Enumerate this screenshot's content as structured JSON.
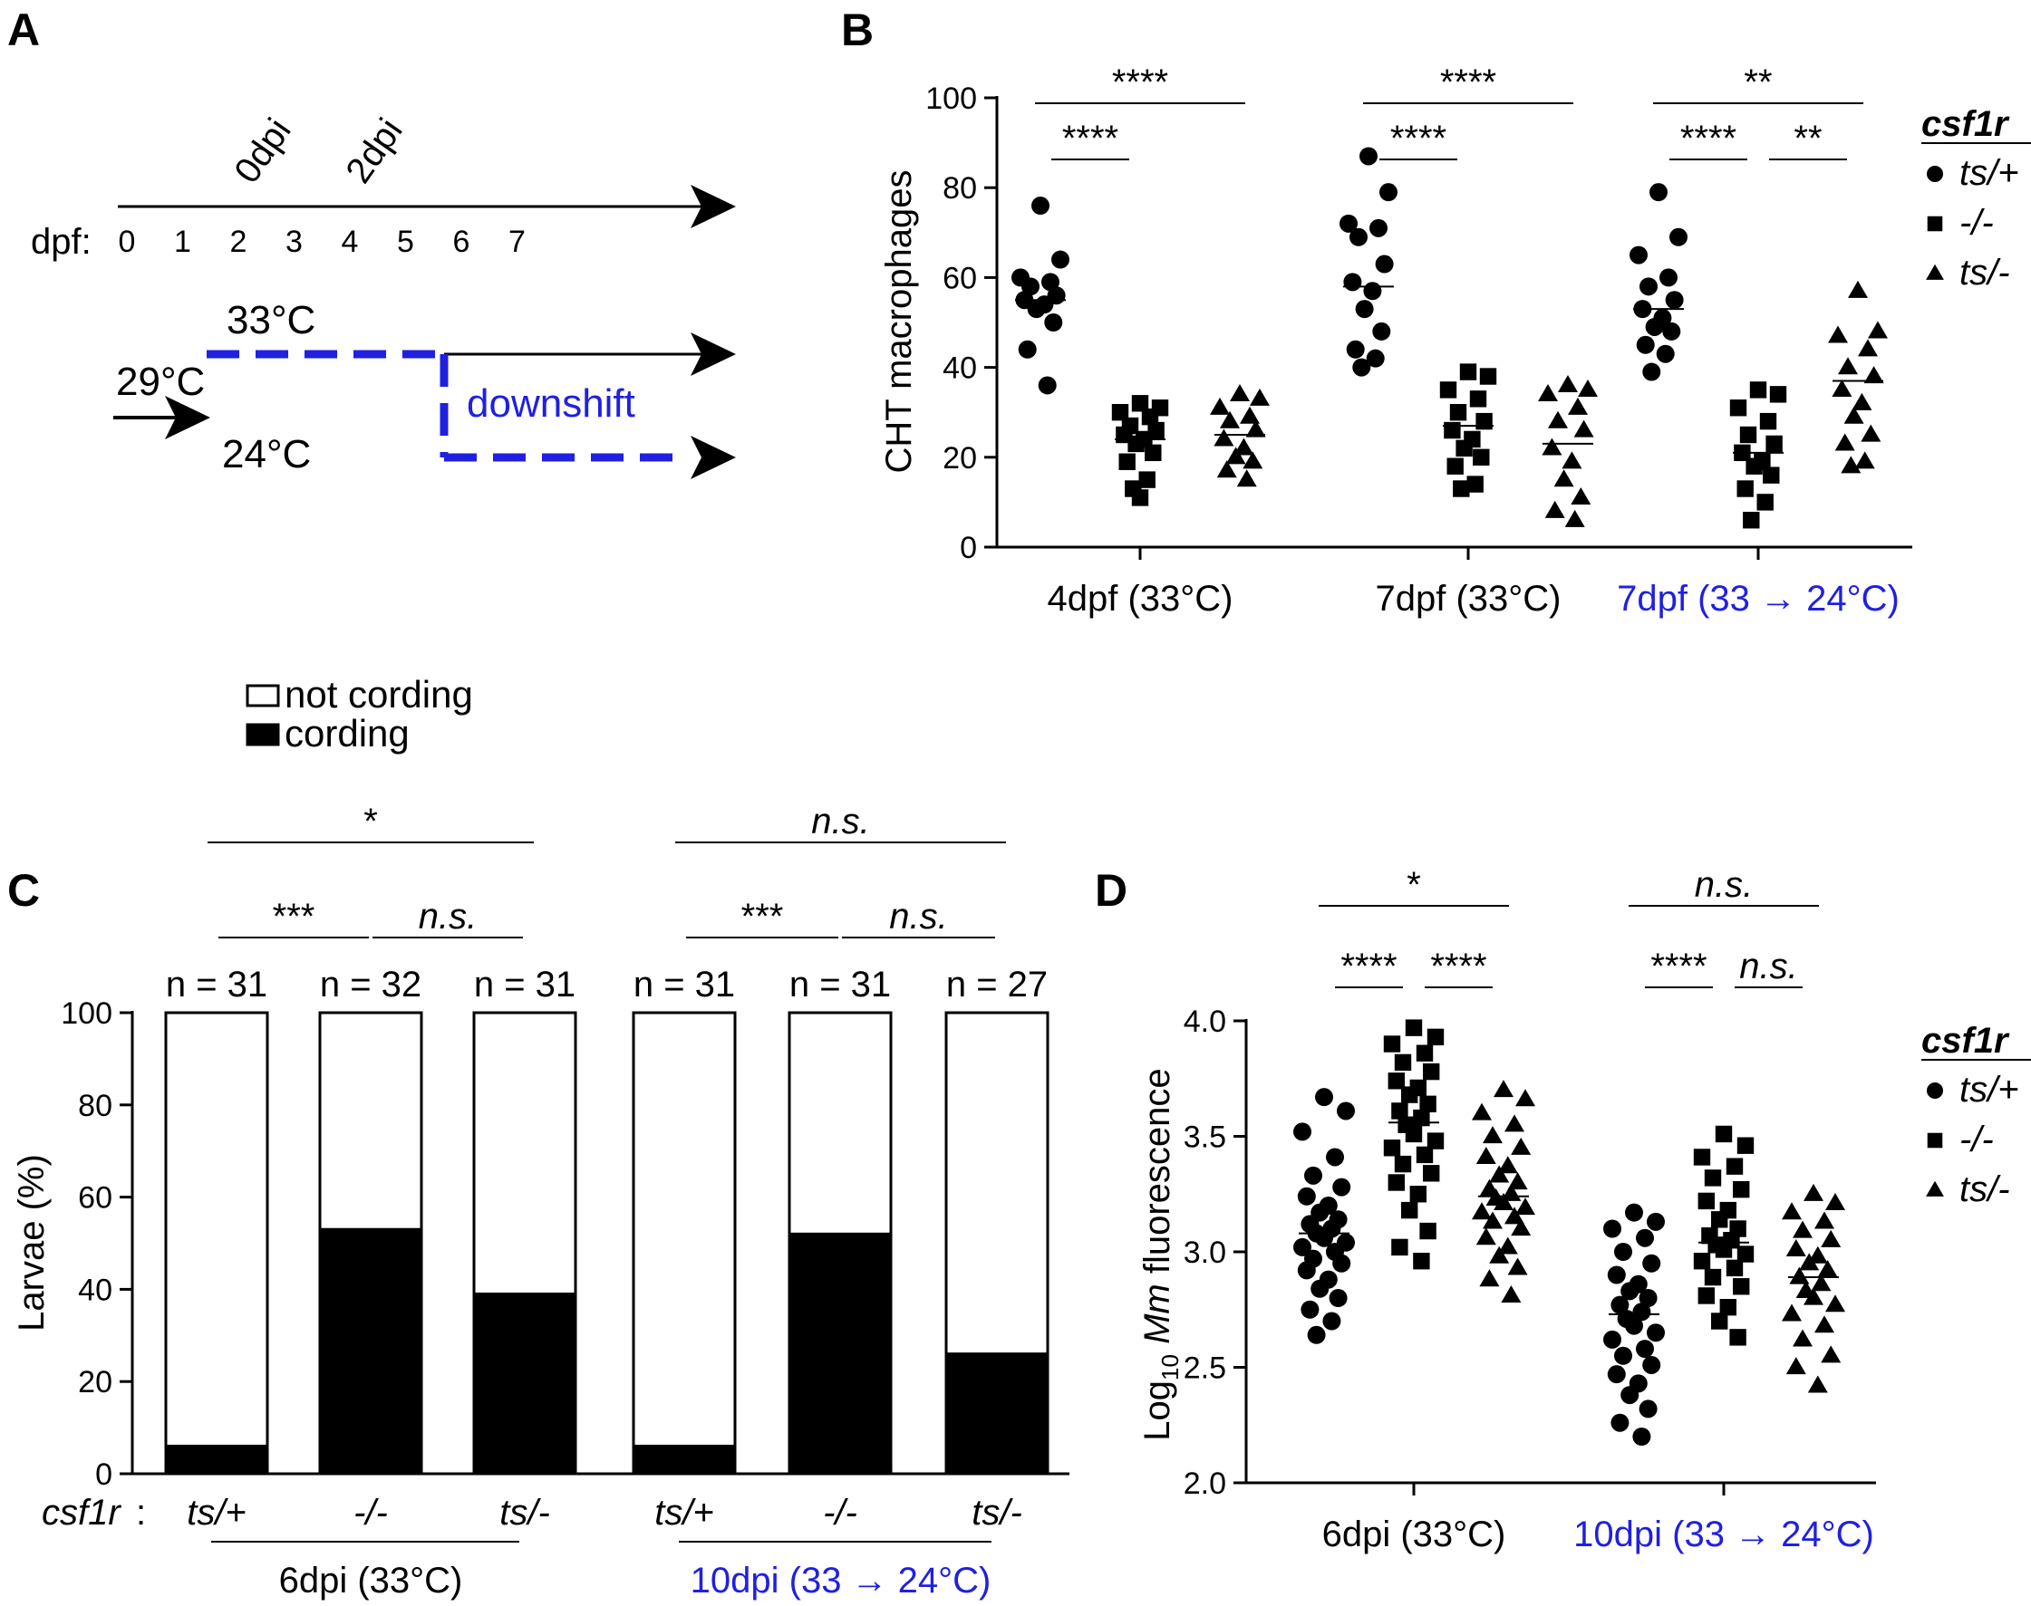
{
  "panels": {
    "A": "A",
    "B": "B",
    "C": "C",
    "D": "D"
  },
  "colors": {
    "accent_blue": "#2020e0",
    "black": "#000000"
  },
  "chart_data": [
    {
      "id": "A",
      "type": "diagram",
      "axis_label": "dpf:",
      "ticks": [
        "0",
        "1",
        "2",
        "3",
        "4",
        "5",
        "6",
        "7"
      ],
      "markers": [
        {
          "label": "0dpi",
          "at": 2
        },
        {
          "label": "2dpi",
          "at": 4
        }
      ],
      "start_temp": "29°C",
      "high_temp": "33°C",
      "low_temp": "24°C",
      "shift_label": "downshift"
    },
    {
      "id": "B",
      "type": "scatter",
      "ylabel": "CHT macrophages",
      "ylim": [
        0,
        100
      ],
      "yticks": [
        "0",
        "20",
        "40",
        "60",
        "80",
        "100"
      ],
      "legend_title": "csf1r",
      "legend": [
        {
          "marker": "circle",
          "label": "ts/+"
        },
        {
          "marker": "square",
          "label": "-/-"
        },
        {
          "marker": "triangle",
          "label": "ts/-"
        }
      ],
      "groups": [
        {
          "label": "4dpf (33°C)",
          "highlight": false,
          "series": [
            {
              "marker": "circle",
              "values": [
                76,
                64,
                60,
                59,
                58,
                56,
                55,
                54,
                53,
                50,
                44,
                36
              ],
              "mean": 55
            },
            {
              "marker": "square",
              "values": [
                32,
                31,
                30,
                29,
                27,
                26,
                25,
                24,
                23,
                21,
                19,
                15,
                13,
                11
              ],
              "mean": 24
            },
            {
              "marker": "triangle",
              "values": [
                34,
                33,
                31,
                29,
                28,
                26,
                24,
                22,
                20,
                19,
                17,
                15
              ],
              "mean": 25
            }
          ],
          "comparisons": [
            {
              "from": 0,
              "to": 1,
              "label": "****",
              "level": 0
            },
            {
              "from": 0,
              "to": 2,
              "label": "****",
              "level": 1
            }
          ]
        },
        {
          "label": "7dpf (33°C)",
          "highlight": false,
          "series": [
            {
              "marker": "circle",
              "values": [
                87,
                79,
                72,
                71,
                69,
                63,
                59,
                57,
                53,
                48,
                44,
                42,
                40
              ],
              "mean": 58
            },
            {
              "marker": "square",
              "values": [
                39,
                38,
                35,
                33,
                30,
                28,
                26,
                24,
                22,
                20,
                18,
                14,
                13
              ],
              "mean": 27
            },
            {
              "marker": "triangle",
              "values": [
                36,
                35,
                34,
                31,
                28,
                26,
                22,
                19,
                15,
                11,
                8,
                6
              ],
              "mean": 23
            }
          ],
          "comparisons": [
            {
              "from": 0,
              "to": 1,
              "label": "****",
              "level": 0
            },
            {
              "from": 0,
              "to": 2,
              "label": "****",
              "level": 1
            }
          ]
        },
        {
          "label": "7dpf (33 → 24°C)",
          "highlight": true,
          "series": [
            {
              "marker": "circle",
              "values": [
                79,
                69,
                65,
                60,
                58,
                55,
                53,
                51,
                49,
                48,
                45,
                43,
                39
              ],
              "mean": 53
            },
            {
              "marker": "square",
              "values": [
                35,
                34,
                31,
                28,
                25,
                23,
                21,
                19,
                18,
                16,
                13,
                10,
                6
              ],
              "mean": 21
            },
            {
              "marker": "triangle",
              "values": [
                57,
                48,
                47,
                44,
                40,
                38,
                35,
                32,
                29,
                25,
                23,
                19,
                18
              ],
              "mean": 37
            }
          ],
          "comparisons": [
            {
              "from": 0,
              "to": 1,
              "label": "****",
              "level": 0
            },
            {
              "from": 1,
              "to": 2,
              "label": "**",
              "level": 0
            },
            {
              "from": 0,
              "to": 2,
              "label": "**",
              "level": 1
            }
          ]
        }
      ]
    },
    {
      "id": "C",
      "type": "bar",
      "stacked": true,
      "ylabel": "Larvae (%)",
      "ylim": [
        0,
        100
      ],
      "yticks": [
        "0",
        "20",
        "40",
        "60",
        "80",
        "100"
      ],
      "legend": [
        {
          "color": "#ffffff",
          "label": "not cording"
        },
        {
          "color": "#000000",
          "label": "cording"
        }
      ],
      "genotype_label": "csf1r",
      "categories": [
        "ts/+",
        "-/-",
        "ts/-",
        "ts/+",
        "-/-",
        "ts/-"
      ],
      "n_labels": [
        "n = 31",
        "n = 32",
        "n = 31",
        "n = 31",
        "n = 31",
        "n = 27"
      ],
      "series": [
        {
          "name": "cording",
          "values": [
            6,
            53,
            39,
            6,
            52,
            26
          ]
        },
        {
          "name": "not cording",
          "values": [
            94,
            47,
            61,
            94,
            48,
            74
          ]
        }
      ],
      "groups": [
        {
          "label": "6dpi (33°C)",
          "highlight": false,
          "bars": [
            0,
            1,
            2
          ]
        },
        {
          "label": "10dpi (33 → 24°C)",
          "highlight": true,
          "bars": [
            3,
            4,
            5
          ]
        }
      ],
      "comparisons": [
        {
          "from": 0,
          "to": 1,
          "label": "***",
          "level": 0,
          "italic": false
        },
        {
          "from": 1,
          "to": 2,
          "label": "n.s.",
          "level": 0,
          "italic": true
        },
        {
          "from": 0,
          "to": 2,
          "label": "*",
          "level": 1,
          "italic": false
        },
        {
          "from": 3,
          "to": 4,
          "label": "***",
          "level": 0,
          "italic": false
        },
        {
          "from": 4,
          "to": 5,
          "label": "n.s.",
          "level": 0,
          "italic": true
        },
        {
          "from": 3,
          "to": 5,
          "label": "n.s.",
          "level": 1,
          "italic": true
        }
      ]
    },
    {
      "id": "D",
      "type": "scatter",
      "ylabel_prefix": "Log",
      "ylabel_sub": "10",
      "ylabel_italic": "Mm",
      "ylabel_suffix": "fluorescence",
      "ylim": [
        2.0,
        4.0
      ],
      "yticks": [
        "2.0",
        "2.5",
        "3.0",
        "3.5",
        "4.0"
      ],
      "legend_title": "csf1r",
      "legend": [
        {
          "marker": "circle",
          "label": "ts/+"
        },
        {
          "marker": "square",
          "label": "-/-"
        },
        {
          "marker": "triangle",
          "label": "ts/-"
        }
      ],
      "groups": [
        {
          "label": "6dpi (33°C)",
          "highlight": false,
          "series": [
            {
              "marker": "circle",
              "values": [
                3.67,
                3.61,
                3.52,
                3.41,
                3.33,
                3.28,
                3.24,
                3.2,
                3.17,
                3.14,
                3.12,
                3.1,
                3.08,
                3.06,
                3.04,
                3.02,
                3.0,
                2.97,
                2.95,
                2.92,
                2.88,
                2.84,
                2.8,
                2.75,
                2.7,
                2.64
              ],
              "mean": 3.08
            },
            {
              "marker": "square",
              "values": [
                3.97,
                3.93,
                3.9,
                3.86,
                3.82,
                3.78,
                3.74,
                3.71,
                3.68,
                3.64,
                3.61,
                3.58,
                3.55,
                3.51,
                3.48,
                3.45,
                3.42,
                3.38,
                3.34,
                3.3,
                3.25,
                3.18,
                3.09,
                3.02,
                2.96
              ],
              "mean": 3.56
            },
            {
              "marker": "triangle",
              "values": [
                3.7,
                3.66,
                3.6,
                3.55,
                3.5,
                3.45,
                3.41,
                3.37,
                3.33,
                3.3,
                3.27,
                3.25,
                3.23,
                3.21,
                3.19,
                3.17,
                3.15,
                3.13,
                3.1,
                3.06,
                3.02,
                2.98,
                2.93,
                2.88,
                2.81
              ],
              "mean": 3.24
            }
          ],
          "comparisons": [
            {
              "from": 0,
              "to": 1,
              "label": "****",
              "level": 0,
              "italic": false
            },
            {
              "from": 1,
              "to": 2,
              "label": "****",
              "level": 0,
              "italic": false
            },
            {
              "from": 0,
              "to": 2,
              "label": "*",
              "level": 1,
              "italic": false
            }
          ]
        },
        {
          "label": "10dpi (33 → 24°C)",
          "highlight": true,
          "series": [
            {
              "marker": "circle",
              "values": [
                3.17,
                3.13,
                3.1,
                3.06,
                3.0,
                2.95,
                2.9,
                2.86,
                2.83,
                2.8,
                2.77,
                2.74,
                2.71,
                2.68,
                2.65,
                2.62,
                2.58,
                2.55,
                2.51,
                2.47,
                2.43,
                2.38,
                2.32,
                2.26,
                2.2
              ],
              "mean": 2.73
            },
            {
              "marker": "square",
              "values": [
                3.51,
                3.46,
                3.41,
                3.37,
                3.32,
                3.27,
                3.22,
                3.18,
                3.14,
                3.1,
                3.07,
                3.05,
                3.03,
                3.01,
                2.99,
                2.96,
                2.93,
                2.89,
                2.85,
                2.81,
                2.76,
                2.7,
                2.63
              ],
              "mean": 3.04
            },
            {
              "marker": "triangle",
              "values": [
                3.25,
                3.21,
                3.17,
                3.13,
                3.09,
                3.05,
                3.01,
                2.98,
                2.95,
                2.92,
                2.89,
                2.86,
                2.83,
                2.8,
                2.77,
                2.73,
                2.68,
                2.62,
                2.55,
                2.5,
                2.42
              ],
              "mean": 2.89
            }
          ],
          "comparisons": [
            {
              "from": 0,
              "to": 1,
              "label": "****",
              "level": 0,
              "italic": false
            },
            {
              "from": 1,
              "to": 2,
              "label": "n.s.",
              "level": 0,
              "italic": true
            },
            {
              "from": 0,
              "to": 2,
              "label": "n.s.",
              "level": 1,
              "italic": true
            }
          ]
        }
      ]
    }
  ]
}
